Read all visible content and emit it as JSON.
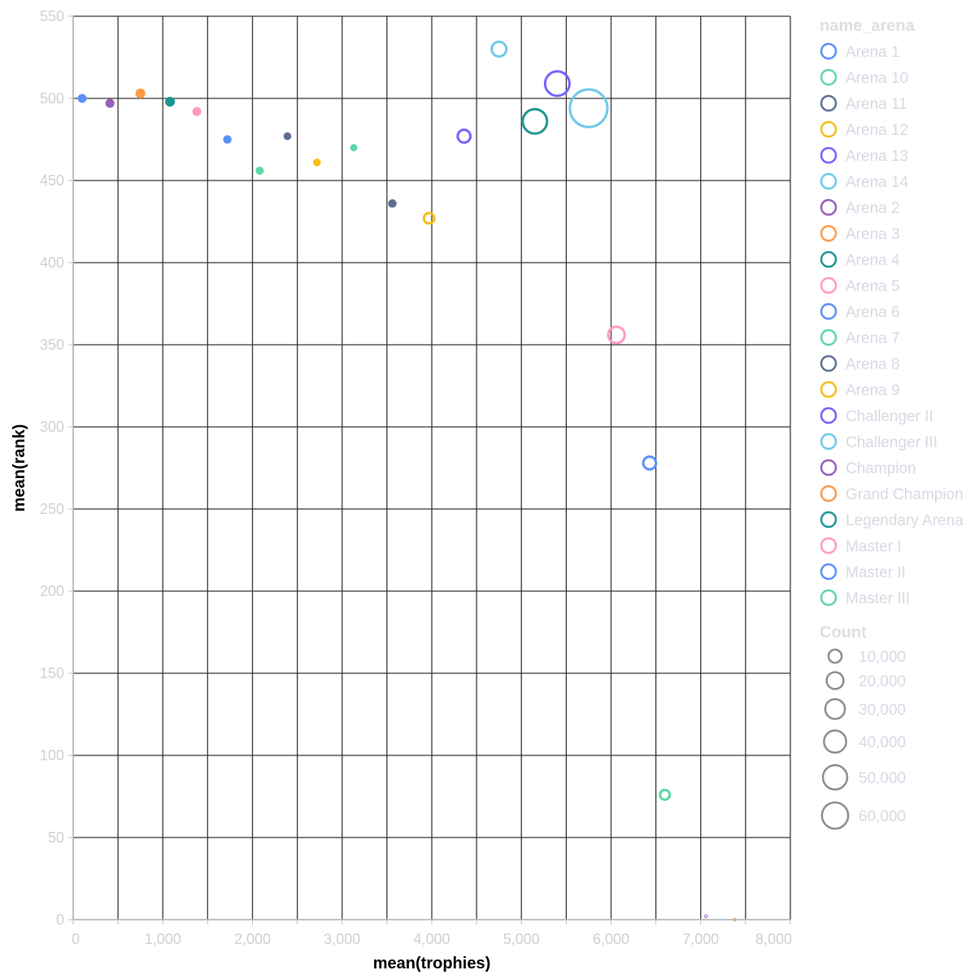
{
  "chart_data": {
    "type": "scatter",
    "xlabel": "mean(trophies)",
    "ylabel": "mean(rank)",
    "xlim": [
      0,
      8000
    ],
    "ylim": [
      0,
      550
    ],
    "x_ticks": [
      0,
      1000,
      2000,
      3000,
      4000,
      5000,
      6000,
      7000,
      8000
    ],
    "x_tick_labels": [
      "0",
      "1,000",
      "2,000",
      "3,000",
      "4,000",
      "5,000",
      "6,000",
      "7,000",
      "8,000"
    ],
    "y_ticks": [
      0,
      50,
      100,
      150,
      200,
      250,
      300,
      350,
      400,
      450,
      500,
      550
    ],
    "y_tick_labels": [
      "0",
      "50",
      "100",
      "150",
      "200",
      "250",
      "300",
      "350",
      "400",
      "450",
      "500",
      "550"
    ],
    "grid": true,
    "color_legend": {
      "title": "name_arena",
      "placement": "right",
      "items": [
        {
          "label": "Arena 1",
          "color": "#5b8ff9"
        },
        {
          "label": "Arena 10",
          "color": "#5ad8a6"
        },
        {
          "label": "Arena 11",
          "color": "#5d7092"
        },
        {
          "label": "Arena 12",
          "color": "#f6bd16"
        },
        {
          "label": "Arena 13",
          "color": "#7262fd"
        },
        {
          "label": "Arena 14",
          "color": "#6dc8ec"
        },
        {
          "label": "Arena 2",
          "color": "#945fb9"
        },
        {
          "label": "Arena 3",
          "color": "#ff9845"
        },
        {
          "label": "Arena 4",
          "color": "#1e9493"
        },
        {
          "label": "Arena 5",
          "color": "#ff99c3"
        },
        {
          "label": "Arena 6",
          "color": "#5b8ff9"
        },
        {
          "label": "Arena 7",
          "color": "#5ad8a6"
        },
        {
          "label": "Arena 8",
          "color": "#5d7092"
        },
        {
          "label": "Arena 9",
          "color": "#f6bd16"
        },
        {
          "label": "Challenger II",
          "color": "#7262fd"
        },
        {
          "label": "Challenger III",
          "color": "#6dc8ec"
        },
        {
          "label": "Champion",
          "color": "#945fb9"
        },
        {
          "label": "Grand Champion",
          "color": "#ff9845"
        },
        {
          "label": "Legendary Arena",
          "color": "#1e9493"
        },
        {
          "label": "Master I",
          "color": "#ff99c3"
        },
        {
          "label": "Master II",
          "color": "#5b8ff9"
        },
        {
          "label": "Master III",
          "color": "#5ad8a6"
        }
      ]
    },
    "size_legend": {
      "title": "Count",
      "placement": "right",
      "items": [
        {
          "label": "10,000",
          "value": 10000
        },
        {
          "label": "20,000",
          "value": 20000
        },
        {
          "label": "30,000",
          "value": 30000
        },
        {
          "label": "40,000",
          "value": 40000
        },
        {
          "label": "50,000",
          "value": 50000
        },
        {
          "label": "60,000",
          "value": 60000
        }
      ]
    },
    "points": [
      {
        "name": "Arena 1",
        "x": 100,
        "y": 500,
        "count": 2500,
        "filled": true
      },
      {
        "name": "Arena 2",
        "x": 410,
        "y": 497,
        "count": 2500,
        "filled": true
      },
      {
        "name": "Arena 3",
        "x": 750,
        "y": 503,
        "count": 3000,
        "filled": true
      },
      {
        "name": "Arena 4",
        "x": 1080,
        "y": 498,
        "count": 3000,
        "filled": true
      },
      {
        "name": "Arena 5",
        "x": 1380,
        "y": 492,
        "count": 2500,
        "filled": true
      },
      {
        "name": "Arena 6",
        "x": 1720,
        "y": 475,
        "count": 2200,
        "filled": true
      },
      {
        "name": "Arena 7",
        "x": 2080,
        "y": 456,
        "count": 2000,
        "filled": true
      },
      {
        "name": "Arena 8",
        "x": 2390,
        "y": 477,
        "count": 1800,
        "filled": true
      },
      {
        "name": "Arena 9",
        "x": 2720,
        "y": 461,
        "count": 1800,
        "filled": true
      },
      {
        "name": "Arena 10",
        "x": 3130,
        "y": 470,
        "count": 1500,
        "filled": true
      },
      {
        "name": "Arena 11",
        "x": 3560,
        "y": 436,
        "count": 2200,
        "filled": true
      },
      {
        "name": "Arena 12",
        "x": 3970,
        "y": 427,
        "count": 4000,
        "filled": false
      },
      {
        "name": "Arena 13",
        "x": 4360,
        "y": 477,
        "count": 6000,
        "filled": false
      },
      {
        "name": "Arena 14",
        "x": 4750,
        "y": 530,
        "count": 8000,
        "filled": false
      },
      {
        "name": "Challenger II",
        "x": 5400,
        "y": 509,
        "count": 22000,
        "filled": false
      },
      {
        "name": "Legendary Arena",
        "x": 5150,
        "y": 486,
        "count": 22000,
        "filled": false
      },
      {
        "name": "Challenger III",
        "x": 5750,
        "y": 494,
        "count": 52000,
        "filled": false
      },
      {
        "name": "Master I",
        "x": 6060,
        "y": 356,
        "count": 10000,
        "filled": false
      },
      {
        "name": "Master II",
        "x": 6430,
        "y": 278,
        "count": 6000,
        "filled": false
      },
      {
        "name": "Master III",
        "x": 6600,
        "y": 76,
        "count": 3500,
        "filled": false
      },
      {
        "name": "Champion",
        "x": 7060,
        "y": 2,
        "count": 300,
        "filled": false
      },
      {
        "name": "Grand Champion",
        "x": 7380,
        "y": 0,
        "count": 40,
        "filled": false
      }
    ]
  }
}
